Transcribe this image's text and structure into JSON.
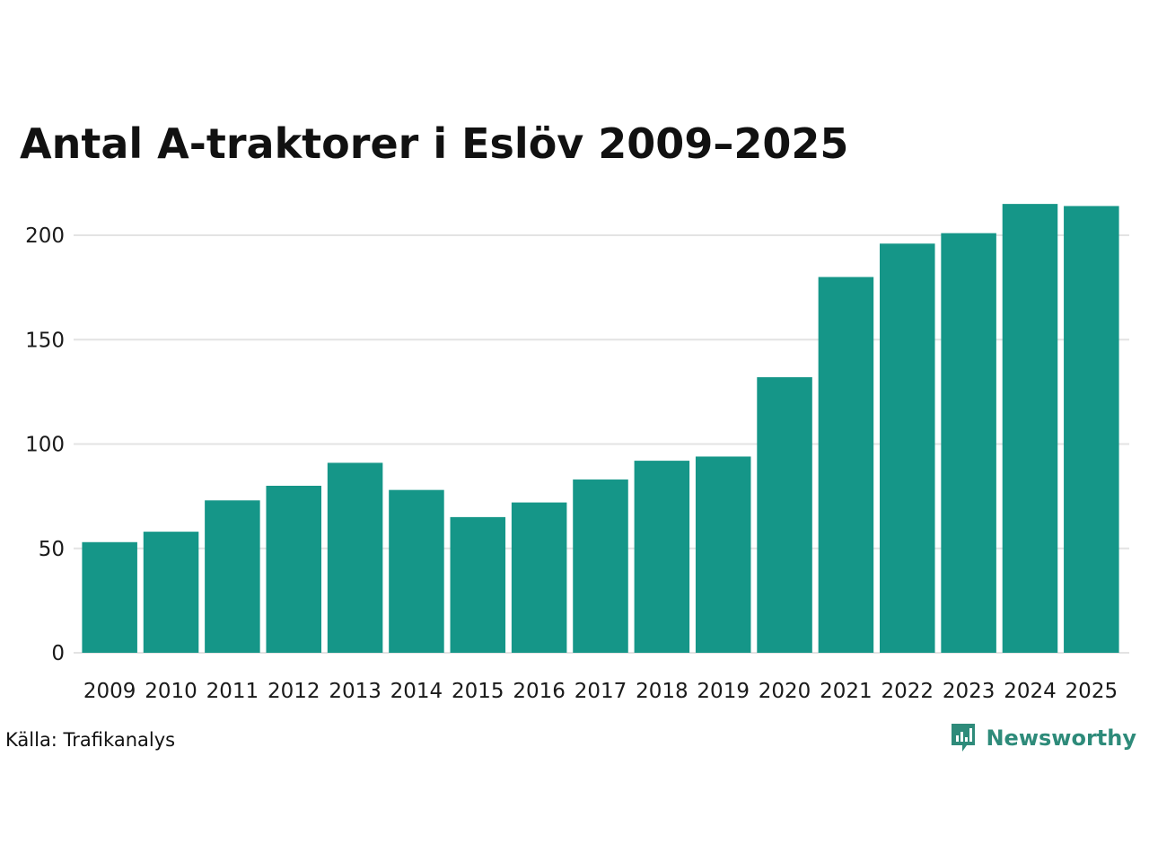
{
  "title": "Antal A-traktorer i Eslöv 2009–2025",
  "source": "Källa: Trafikanalys",
  "brand": {
    "name": "Newsworthy",
    "icon": "newsworthy-logo-icon",
    "color": "#2e8b7a"
  },
  "colors": {
    "bar": "#159688",
    "grid": "#e3e3e3",
    "text": "#1a1a1a"
  },
  "chart_data": {
    "type": "bar",
    "title": "Antal A-traktorer i Eslöv 2009–2025",
    "xlabel": "",
    "ylabel": "",
    "categories": [
      "2009",
      "2010",
      "2011",
      "2012",
      "2013",
      "2014",
      "2015",
      "2016",
      "2017",
      "2018",
      "2019",
      "2020",
      "2021",
      "2022",
      "2023",
      "2024",
      "2025"
    ],
    "values": [
      53,
      58,
      73,
      80,
      91,
      78,
      65,
      72,
      83,
      92,
      94,
      132,
      180,
      196,
      201,
      215,
      214
    ],
    "ylim": [
      0,
      215
    ],
    "yticks": [
      0,
      50,
      100,
      150,
      200
    ],
    "grid": true,
    "legend": "none"
  }
}
